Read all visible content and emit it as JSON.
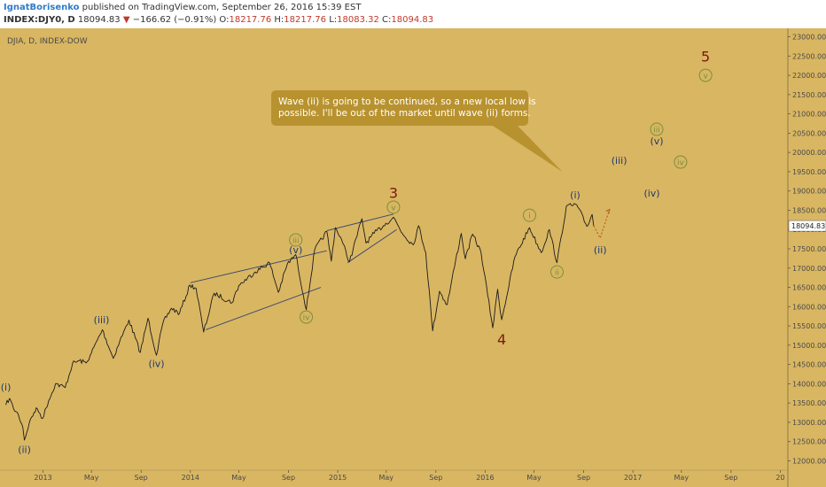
{
  "header": {
    "author": "IgnatBorisenko",
    "published": "published on TradingView.com, September 26, 2016 15:39 EST",
    "symbol": "INDEX:DJY0, D",
    "last": "18094.83",
    "change": "−166.62 (−0.91%)",
    "o_label": "O:",
    "o_value": "18217.76",
    "h_label": "H:",
    "h_value": "18217.76",
    "l_label": "L:",
    "l_value": "18083.32",
    "c_label": "C:",
    "c_value": "18094.83"
  },
  "colors": {
    "background": "#d9b662",
    "price_line": "#1c1c1c",
    "wave_label_blue": "#1e3a6e",
    "wave_circle_green": "#7a8f3a",
    "major_wave_red": "#7a1a10",
    "channel_line": "#3a4a70",
    "callout_bg": "#b8922f",
    "price_tag_bg": "#ffffff",
    "negative": "#c0392b"
  },
  "chart_data": {
    "type": "line",
    "title": "DJIA, D, INDEX-DOW",
    "x_ticks": [
      "2013",
      "May",
      "Sep",
      "2014",
      "May",
      "Sep",
      "2015",
      "May",
      "Sep",
      "2016",
      "May",
      "Sep",
      "2017",
      "May",
      "Sep",
      "20"
    ],
    "y_ticks": [
      12000,
      12500,
      13000,
      13500,
      14000,
      14500,
      15000,
      15500,
      16000,
      16500,
      17000,
      17500,
      18000,
      18500,
      19000,
      19500,
      20000,
      20500,
      21000,
      21500,
      22000,
      22500,
      23000
    ],
    "ylim": [
      11850,
      23150
    ],
    "last_price_label": "18094.83",
    "series": [
      {
        "points": [
          [
            "2012-10-01",
            13450
          ],
          [
            "2012-10-10",
            13620
          ],
          [
            "2012-10-20",
            13360
          ],
          [
            "2012-11-01",
            13200
          ],
          [
            "2012-11-12",
            12880
          ],
          [
            "2012-11-16",
            12540
          ],
          [
            "2012-11-28",
            12980
          ],
          [
            "2012-12-10",
            13260
          ],
          [
            "2012-12-18",
            13350
          ],
          [
            "2012-12-31",
            13100
          ],
          [
            "2013-01-15",
            13560
          ],
          [
            "2013-02-01",
            14000
          ],
          [
            "2013-02-25",
            13900
          ],
          [
            "2013-03-15",
            14520
          ],
          [
            "2013-04-01",
            14600
          ],
          [
            "2013-04-18",
            14540
          ],
          [
            "2013-05-01",
            14800
          ],
          [
            "2013-05-28",
            15400
          ],
          [
            "2013-06-24",
            14660
          ],
          [
            "2013-07-10",
            15100
          ],
          [
            "2013-08-02",
            15650
          ],
          [
            "2013-08-30",
            14810
          ],
          [
            "2013-09-18",
            15700
          ],
          [
            "2013-10-09",
            14740
          ],
          [
            "2013-10-25",
            15570
          ],
          [
            "2013-11-15",
            15960
          ],
          [
            "2013-12-05",
            15820
          ],
          [
            "2013-12-31",
            16560
          ],
          [
            "2014-01-15",
            16480
          ],
          [
            "2014-02-03",
            15340
          ],
          [
            "2014-03-01",
            16350
          ],
          [
            "2014-04-14",
            16100
          ],
          [
            "2014-05-01",
            16550
          ],
          [
            "2014-06-10",
            16900
          ],
          [
            "2014-07-16",
            17140
          ],
          [
            "2014-08-07",
            16370
          ],
          [
            "2014-08-29",
            17100
          ],
          [
            "2014-09-19",
            17350
          ],
          [
            "2014-10-15",
            15920
          ],
          [
            "2014-11-05",
            17480
          ],
          [
            "2014-12-05",
            17950
          ],
          [
            "2014-12-16",
            17180
          ],
          [
            "2014-12-26",
            18050
          ],
          [
            "2015-01-08",
            17800
          ],
          [
            "2015-01-30",
            17160
          ],
          [
            "2015-03-02",
            18280
          ],
          [
            "2015-03-12",
            17650
          ],
          [
            "2015-04-01",
            17900
          ],
          [
            "2015-04-24",
            18100
          ],
          [
            "2015-05-19",
            18320
          ],
          [
            "2015-06-10",
            17900
          ],
          [
            "2015-07-07",
            17600
          ],
          [
            "2015-07-20",
            18100
          ],
          [
            "2015-08-07",
            17400
          ],
          [
            "2015-08-24",
            15370
          ],
          [
            "2015-09-10",
            16400
          ],
          [
            "2015-09-29",
            16050
          ],
          [
            "2015-10-20",
            17200
          ],
          [
            "2015-11-03",
            17900
          ],
          [
            "2015-11-13",
            17240
          ],
          [
            "2015-12-01",
            17880
          ],
          [
            "2015-12-22",
            17400
          ],
          [
            "2016-01-20",
            15450
          ],
          [
            "2016-02-01",
            16450
          ],
          [
            "2016-02-11",
            15660
          ],
          [
            "2016-03-15",
            17300
          ],
          [
            "2016-04-20",
            18050
          ],
          [
            "2016-05-19",
            17400
          ],
          [
            "2016-06-08",
            18000
          ],
          [
            "2016-06-27",
            17140
          ],
          [
            "2016-07-20",
            18600
          ],
          [
            "2016-08-15",
            18640
          ],
          [
            "2016-09-09",
            18080
          ],
          [
            "2016-09-22",
            18390
          ],
          [
            "2016-09-26",
            18094
          ]
        ]
      }
    ],
    "projection": [
      [
        "2016-09-26",
        18094
      ],
      [
        "2016-10-12",
        17780
      ],
      [
        "2016-11-04",
        18520
      ]
    ],
    "trendlines": [
      [
        [
          "2014-01-01",
          16620
        ],
        [
          "2014-12-05",
          17450
        ]
      ],
      [
        [
          "2014-02-08",
          15400
        ],
        [
          "2014-11-20",
          16500
        ]
      ],
      [
        [
          "2014-12-05",
          17970
        ],
        [
          "2015-05-19",
          18400
        ]
      ],
      [
        [
          "2015-01-25",
          17140
        ],
        [
          "2015-05-27",
          18000
        ]
      ]
    ],
    "annotations": [
      {
        "text": "(i)",
        "x": "2012-10-01",
        "y": 13920,
        "style": "blue"
      },
      {
        "text": "(ii)",
        "x": "2012-11-16",
        "y": 12300,
        "style": "blue"
      },
      {
        "text": "(iii)",
        "x": "2013-05-26",
        "y": 15660,
        "style": "blue"
      },
      {
        "text": "(iv)",
        "x": "2013-10-09",
        "y": 14520,
        "style": "blue"
      },
      {
        "text": "iii",
        "x": "2014-09-19",
        "y": 17730,
        "style": "green-circle"
      },
      {
        "text": "(v)",
        "x": "2014-09-19",
        "y": 17480,
        "style": "blue"
      },
      {
        "text": "iv",
        "x": "2014-10-15",
        "y": 15730,
        "style": "green-circle"
      },
      {
        "text": "3",
        "x": "2015-05-19",
        "y": 18960,
        "style": "red-large"
      },
      {
        "text": "v",
        "x": "2015-05-19",
        "y": 18580,
        "style": "green-circle"
      },
      {
        "text": "4",
        "x": "2016-02-11",
        "y": 15160,
        "style": "red-large"
      },
      {
        "text": "i",
        "x": "2016-04-20",
        "y": 18370,
        "style": "green-circle"
      },
      {
        "text": "ii",
        "x": "2016-06-27",
        "y": 16900,
        "style": "green-circle"
      },
      {
        "text": "(i)",
        "x": "2016-08-11",
        "y": 18900,
        "style": "blue"
      },
      {
        "text": "(ii)",
        "x": "2016-10-12",
        "y": 17480,
        "style": "blue"
      },
      {
        "text": "(iii)",
        "x": "2016-11-28",
        "y": 19800,
        "style": "blue"
      },
      {
        "text": "(iv)",
        "x": "2017-02-17",
        "y": 18950,
        "style": "blue"
      },
      {
        "text": "iii",
        "x": "2017-03-01",
        "y": 20600,
        "style": "green-circle"
      },
      {
        "text": "(v)",
        "x": "2017-03-01",
        "y": 20300,
        "style": "blue"
      },
      {
        "text": "iv",
        "x": "2017-04-29",
        "y": 19750,
        "style": "green-circle"
      },
      {
        "text": "v",
        "x": "2017-06-30",
        "y": 22000,
        "style": "green-circle"
      },
      {
        "text": "5",
        "x": "2017-06-30",
        "y": 22500,
        "style": "red-large"
      }
    ],
    "callout": {
      "text_lines": [
        "Wave (ii) is going to be continued, so a new local low is",
        "possible. I'll be out of the market until wave (ii) forms."
      ],
      "pointer_to": [
        "2016-07-10",
        19500
      ]
    }
  }
}
